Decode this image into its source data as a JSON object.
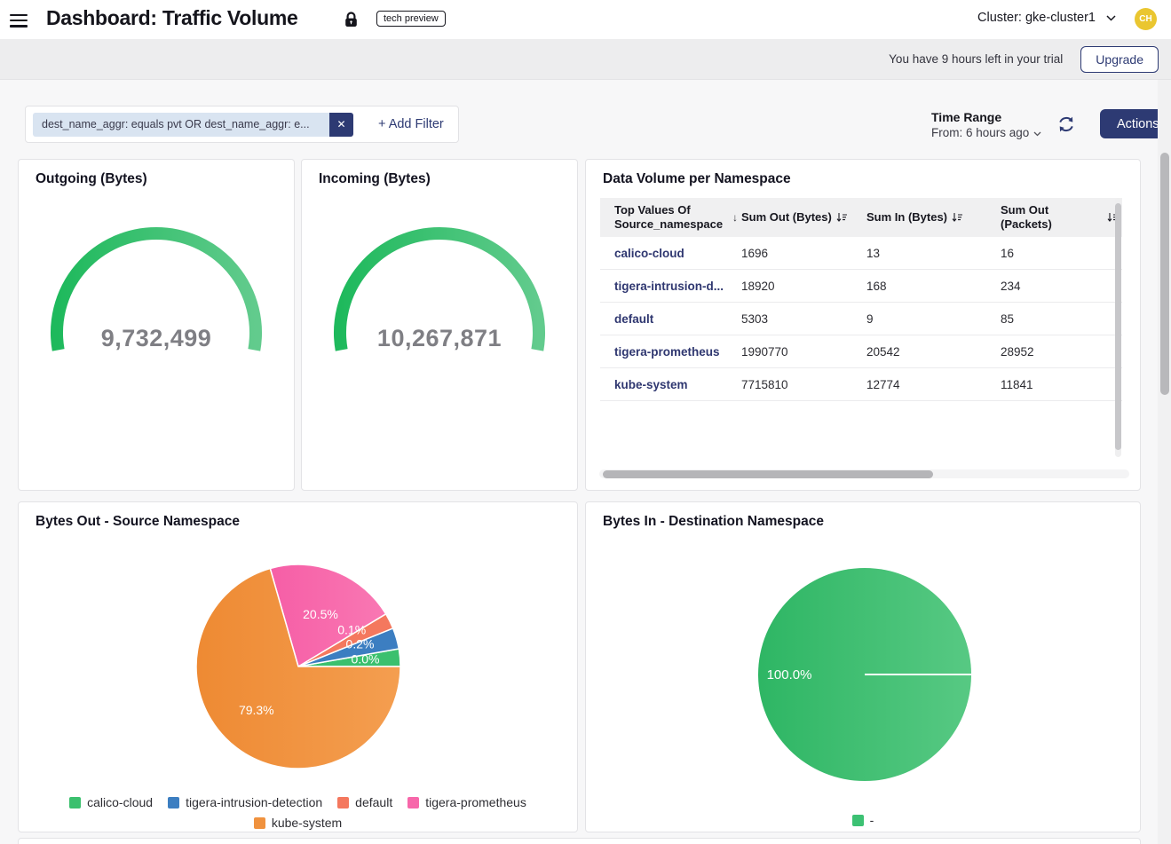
{
  "header": {
    "title": "Dashboard: Traffic Volume",
    "badge": "tech preview",
    "cluster": "Cluster: gke-cluster1",
    "avatar_initials": "CH"
  },
  "trial": {
    "message": "You have 9 hours left in your trial",
    "upgrade_label": "Upgrade"
  },
  "filters": {
    "chip": "dest_name_aggr: equals pvt OR dest_name_aggr: e...",
    "add_filter_label": "+ Add Filter"
  },
  "toolbar": {
    "time_range_label": "Time Range",
    "time_range_value": "From: 6 hours ago",
    "actions_label": "Actions"
  },
  "colors": {
    "accent_navy": "#2d3a73",
    "gauge_green_start": "#1eb95c",
    "gauge_green_end": "#62cb8d",
    "gauge_value_gray": "#7f7f84",
    "avatar_yellow": "#eac630",
    "chip_blue": "#d9e4f1",
    "link_navy": "#2f3770"
  },
  "chart_data": [
    {
      "type": "gauge",
      "title": "Outgoing (Bytes)",
      "value": 9732499,
      "display": "9,732,499",
      "color_start": "#1eb95c",
      "color_end": "#62cb8d"
    },
    {
      "type": "gauge",
      "title": "Incoming (Bytes)",
      "value": 10267871,
      "display": "10,267,871",
      "color_start": "#1eb95c",
      "color_end": "#62cb8d"
    },
    {
      "type": "table",
      "title": "Data Volume per Namespace",
      "columns": [
        "Top Values Of Source_namespace",
        "Sum Out (Bytes)",
        "Sum In (Bytes)",
        "Sum Out (Packets)"
      ],
      "rows": [
        [
          "calico-cloud",
          "1696",
          "13",
          "16"
        ],
        [
          "tigera-intrusion-d...",
          "18920",
          "168",
          "234"
        ],
        [
          "default",
          "5303",
          "9",
          "85"
        ],
        [
          "tigera-prometheus",
          "1990770",
          "20542",
          "28952"
        ],
        [
          "kube-system",
          "7715810",
          "12774",
          "11841"
        ]
      ]
    },
    {
      "type": "pie",
      "title": "Bytes Out - Source Namespace",
      "legend_position": "bottom",
      "series": [
        {
          "name": "calico-cloud",
          "pct": 0.0,
          "label": "0.0%",
          "color": "#3bc06e"
        },
        {
          "name": "tigera-intrusion-detection",
          "pct": 0.2,
          "label": "0.2%",
          "color": "#3c7ec1"
        },
        {
          "name": "default",
          "pct": 0.1,
          "label": "0.1%",
          "color": "#f4785e"
        },
        {
          "name": "tigera-prometheus",
          "pct": 20.5,
          "label": "20.5%",
          "color": "#f767aa",
          "color_start": "#f65ea6",
          "color_end": "#f978b3"
        },
        {
          "name": "kube-system",
          "pct": 79.3,
          "label": "79.3%",
          "color": "#f0923e",
          "color_start": "#ee8a33",
          "color_end": "#f49e50"
        }
      ],
      "legend": [
        "calico-cloud",
        "tigera-intrusion-detection",
        "default",
        "tigera-prometheus",
        "kube-system"
      ]
    },
    {
      "type": "pie",
      "title": "Bytes In - Destination Namespace",
      "legend_position": "bottom",
      "series": [
        {
          "name": "-",
          "pct": 100.0,
          "label": "100.0%",
          "color": "#3cc173",
          "color_start": "#2eb664",
          "color_end": "#57c983"
        }
      ],
      "legend": [
        "-"
      ]
    }
  ]
}
